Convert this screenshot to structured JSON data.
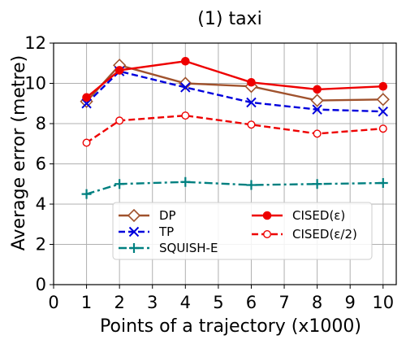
{
  "chart_data": {
    "type": "line",
    "title": "(1) taxi",
    "xlabel": "Points of a trajectory (x1000)",
    "ylabel": "Average error (metre)",
    "xlim": [
      0,
      10.4
    ],
    "ylim": [
      0,
      12
    ],
    "xticks": [
      0,
      1,
      2,
      3,
      4,
      5,
      6,
      7,
      8,
      9,
      10
    ],
    "yticks": [
      0,
      2,
      4,
      6,
      8,
      10,
      12
    ],
    "grid": true,
    "legend_position": "lower-center",
    "x": [
      1,
      2,
      4,
      6,
      8,
      10
    ],
    "series": [
      {
        "name": "DP",
        "values": [
          9.1,
          10.9,
          10.0,
          9.85,
          9.15,
          9.2
        ],
        "color": "#a0522d",
        "dash": "solid",
        "marker": "diamond-open"
      },
      {
        "name": "TP",
        "values": [
          9.0,
          10.6,
          9.8,
          9.05,
          8.7,
          8.6
        ],
        "color": "#0000dd",
        "dash": "dashed",
        "marker": "x"
      },
      {
        "name": "SQUISH-E",
        "values": [
          4.5,
          5.0,
          5.1,
          4.95,
          5.0,
          5.05
        ],
        "color": "#008080",
        "dash": "dashdot",
        "marker": "plus"
      },
      {
        "name": "CISED(ε)",
        "values": [
          9.3,
          10.65,
          11.1,
          10.05,
          9.7,
          9.85
        ],
        "color": "#ee0000",
        "dash": "solid",
        "marker": "circle-filled"
      },
      {
        "name": "CISED(ε/2)",
        "values": [
          7.05,
          8.15,
          8.4,
          7.95,
          7.5,
          7.75
        ],
        "color": "#ee0000",
        "dash": "dashed",
        "marker": "circle-open"
      }
    ]
  }
}
